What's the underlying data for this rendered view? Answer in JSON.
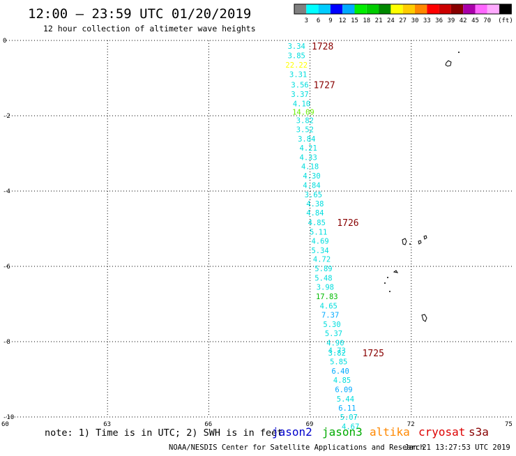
{
  "header": {
    "title": "12:00 – 23:59 UTC 01/20/2019",
    "subtitle": "12 hour collection of altimeter wave heights"
  },
  "color_scale": {
    "colors": [
      "#808080",
      "#00ffff",
      "#00ccff",
      "#0000ff",
      "#00aaff",
      "#00ee00",
      "#00cc00",
      "#008800",
      "#ffff00",
      "#ffcc00",
      "#ff8800",
      "#ff0000",
      "#cc0000",
      "#880000",
      "#aa00aa",
      "#ff66ff",
      "#ffaaff",
      "#000000"
    ],
    "labels": [
      "3",
      "6",
      "9",
      "12",
      "15",
      "18",
      "21",
      "24",
      "27",
      "30",
      "33",
      "36",
      "39",
      "42",
      "45",
      "70"
    ],
    "unit": "(ft)"
  },
  "chart_data": {
    "type": "scatter",
    "title": "12:00 – 23:59 UTC 01/20/2019",
    "subtitle": "12 hour collection of altimeter wave heights",
    "xlim": [
      60,
      75
    ],
    "ylim": [
      -10,
      0
    ],
    "x_ticks": [
      "60",
      "63",
      "66",
      "69",
      "72",
      "75"
    ],
    "y_ticks": [
      "0",
      "-2",
      "-4",
      "-6",
      "-8",
      "-10"
    ],
    "grid": true,
    "series": [
      {
        "name": "jason3",
        "color": "#00dddd",
        "points": [
          {
            "x": 68.6,
            "y": -0.15,
            "label": "3.34",
            "color": "#00dddd"
          },
          {
            "x": 68.6,
            "y": -0.4,
            "label": "3.85",
            "color": "#00dddd"
          },
          {
            "x": 68.6,
            "y": -0.65,
            "label": "22.22",
            "color": "#ffff00"
          },
          {
            "x": 68.65,
            "y": -0.9,
            "label": "3.31",
            "color": "#00dddd"
          },
          {
            "x": 68.7,
            "y": -1.18,
            "label": "3.56",
            "color": "#00dddd"
          },
          {
            "x": 68.7,
            "y": -1.43,
            "label": "3.37",
            "color": "#00dddd"
          },
          {
            "x": 68.75,
            "y": -1.68,
            "label": "4.10",
            "color": "#00dddd"
          },
          {
            "x": 68.8,
            "y": -1.9,
            "label": "14.09",
            "color": "#66ee00"
          },
          {
            "x": 68.85,
            "y": -2.12,
            "label": "3.82",
            "color": "#00dddd"
          },
          {
            "x": 68.85,
            "y": -2.36,
            "label": "3.52",
            "color": "#00dddd"
          },
          {
            "x": 68.9,
            "y": -2.61,
            "label": "3.84",
            "color": "#00dddd"
          },
          {
            "x": 68.95,
            "y": -2.85,
            "label": "4.21",
            "color": "#00dddd"
          },
          {
            "x": 68.95,
            "y": -3.1,
            "label": "4.33",
            "color": "#00dddd"
          },
          {
            "x": 69.0,
            "y": -3.34,
            "label": "4.18",
            "color": "#00dddd"
          },
          {
            "x": 69.05,
            "y": -3.59,
            "label": "4.30",
            "color": "#00dddd"
          },
          {
            "x": 69.05,
            "y": -3.84,
            "label": "4.84",
            "color": "#00dddd"
          },
          {
            "x": 69.1,
            "y": -4.09,
            "label": "3.65",
            "color": "#00dddd"
          },
          {
            "x": 69.15,
            "y": -4.33,
            "label": "4.38",
            "color": "#00dddd"
          },
          {
            "x": 69.15,
            "y": -4.57,
            "label": "4.84",
            "color": "#00dddd"
          },
          {
            "x": 69.2,
            "y": -4.83,
            "label": "4.85",
            "color": "#00dddd"
          },
          {
            "x": 69.25,
            "y": -5.08,
            "label": "5.11",
            "color": "#00dddd"
          },
          {
            "x": 69.3,
            "y": -5.32,
            "label": "4.69",
            "color": "#00dddd"
          },
          {
            "x": 69.3,
            "y": -5.57,
            "label": "5.34",
            "color": "#00dddd"
          },
          {
            "x": 69.35,
            "y": -5.81,
            "label": "4.72",
            "color": "#00dddd"
          },
          {
            "x": 69.4,
            "y": -6.06,
            "label": "5.89",
            "color": "#00dddd"
          },
          {
            "x": 69.4,
            "y": -6.31,
            "label": "5.48",
            "color": "#00dddd"
          },
          {
            "x": 69.45,
            "y": -6.55,
            "label": "3.98",
            "color": "#00dddd"
          },
          {
            "x": 69.5,
            "y": -6.8,
            "label": "17.83",
            "color": "#00bb00"
          },
          {
            "x": 69.55,
            "y": -7.05,
            "label": "4.65",
            "color": "#00dddd"
          },
          {
            "x": 69.6,
            "y": -7.29,
            "label": "7.37",
            "color": "#00aaff"
          },
          {
            "x": 69.65,
            "y": -7.54,
            "label": "5.30",
            "color": "#00dddd"
          },
          {
            "x": 69.7,
            "y": -7.78,
            "label": "5.37",
            "color": "#00dddd"
          },
          {
            "x": 69.75,
            "y": -8.03,
            "label": "4.90",
            "color": "#00dddd"
          },
          {
            "x": 69.8,
            "y": -8.23,
            "label": "4.73",
            "color": "#00dddd"
          },
          {
            "x": 69.8,
            "y": -8.3,
            "label": "3.82",
            "color": "#00dddd"
          },
          {
            "x": 69.85,
            "y": -8.53,
            "label": "5.85",
            "color": "#00dddd"
          },
          {
            "x": 69.9,
            "y": -8.78,
            "label": "6.40",
            "color": "#00aaff"
          },
          {
            "x": 69.95,
            "y": -9.02,
            "label": "4.85",
            "color": "#00dddd"
          },
          {
            "x": 70.0,
            "y": -9.27,
            "label": "6.09",
            "color": "#00aaff"
          },
          {
            "x": 70.05,
            "y": -9.52,
            "label": "5.44",
            "color": "#00dddd"
          },
          {
            "x": 70.1,
            "y": -9.76,
            "label": "6.11",
            "color": "#00aaff"
          },
          {
            "x": 70.15,
            "y": -10.0,
            "label": "5.07",
            "color": "#00dddd"
          },
          {
            "x": 70.2,
            "y": -10.25,
            "label": "4.67",
            "color": "#00dddd"
          }
        ]
      }
    ],
    "time_labels": [
      {
        "x": 69.05,
        "y": -0.15,
        "label": "1728"
      },
      {
        "x": 69.1,
        "y": -1.18,
        "label": "1727"
      },
      {
        "x": 69.8,
        "y": -4.83,
        "label": "1726"
      },
      {
        "x": 70.55,
        "y": -8.3,
        "label": "1725"
      }
    ],
    "time_label_color": "#880000"
  },
  "footer": {
    "note": "note: 1) Time is in UTC; 2) SWH is in feet",
    "legend": [
      {
        "name": "jason2",
        "color": "#0000cc"
      },
      {
        "name": "jason3",
        "color": "#00aa00"
      },
      {
        "name": "altika",
        "color": "#ff8800"
      },
      {
        "name": "cryosat",
        "color": "#dd0000"
      },
      {
        "name": "s3a",
        "color": "#880000"
      }
    ],
    "credit": "NOAA/NESDIS Center for Satellite Applications and Research",
    "timestamp": "Jan 21 13:27:53 UTC 2019"
  }
}
